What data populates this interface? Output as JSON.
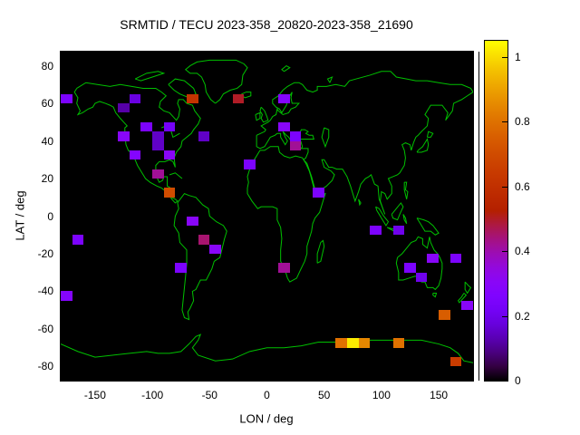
{
  "page": {
    "background": "#ffffff"
  },
  "chart_data": {
    "type": "heatmap",
    "title": "SRMTID / TECU 2023-358_20820-2023-358_21690",
    "xlabel": "LON / deg",
    "ylabel": "LAT / deg",
    "xlim": [
      -180,
      180
    ],
    "ylim": [
      -87.5,
      87.5
    ],
    "xticks": [
      -150,
      -100,
      -50,
      0,
      50,
      100,
      150
    ],
    "yticks": [
      -80,
      -60,
      -40,
      -20,
      0,
      20,
      40,
      60,
      80
    ],
    "grid": false,
    "plot_bg": "#000000",
    "coastline_color": "#00c000",
    "legend_position": "right-colorbar",
    "colorbar": {
      "min": 0,
      "max": 1.05,
      "ticks": [
        0,
        0.2,
        0.4,
        0.6,
        0.8,
        1
      ],
      "tick_labels": [
        "0",
        "0.2",
        "0.4",
        "0.6",
        "0.8",
        "1"
      ],
      "palette": "gnuplot pm3d black-violet-magenta-red-orange-yellow"
    },
    "cell_size_deg": {
      "lon": 10,
      "lat": 5
    },
    "cells": [
      {
        "lon": -180,
        "lat": 60,
        "v": 0.25
      },
      {
        "lon": -120,
        "lat": 60,
        "v": 0.18
      },
      {
        "lon": -70,
        "lat": 60,
        "v": 0.62
      },
      {
        "lon": -30,
        "lat": 60,
        "v": 0.5
      },
      {
        "lon": 10,
        "lat": 60,
        "v": 0.28
      },
      {
        "lon": -130,
        "lat": 55,
        "v": 0.12
      },
      {
        "lon": -130,
        "lat": 40,
        "v": 0.3
      },
      {
        "lon": -110,
        "lat": 45,
        "v": 0.25
      },
      {
        "lon": -100,
        "lat": 40,
        "v": 0.15
      },
      {
        "lon": -90,
        "lat": 45,
        "v": 0.22
      },
      {
        "lon": -60,
        "lat": 40,
        "v": 0.15
      },
      {
        "lon": 10,
        "lat": 45,
        "v": 0.3
      },
      {
        "lon": 20,
        "lat": 40,
        "v": 0.25
      },
      {
        "lon": 20,
        "lat": 35,
        "v": 0.42
      },
      {
        "lon": -120,
        "lat": 30,
        "v": 0.28
      },
      {
        "lon": -100,
        "lat": 35,
        "v": 0.15
      },
      {
        "lon": -90,
        "lat": 30,
        "v": 0.3
      },
      {
        "lon": -20,
        "lat": 25,
        "v": 0.25
      },
      {
        "lon": -100,
        "lat": 20,
        "v": 0.42
      },
      {
        "lon": -90,
        "lat": 10,
        "v": 0.7
      },
      {
        "lon": 40,
        "lat": 10,
        "v": 0.25
      },
      {
        "lon": -70,
        "lat": -5,
        "v": 0.3
      },
      {
        "lon": -170,
        "lat": -15,
        "v": 0.25
      },
      {
        "lon": -60,
        "lat": -15,
        "v": 0.45
      },
      {
        "lon": -50,
        "lat": -20,
        "v": 0.3
      },
      {
        "lon": 90,
        "lat": -10,
        "v": 0.25
      },
      {
        "lon": 110,
        "lat": -10,
        "v": 0.2
      },
      {
        "lon": 140,
        "lat": -25,
        "v": 0.3
      },
      {
        "lon": 160,
        "lat": -25,
        "v": 0.25
      },
      {
        "lon": -80,
        "lat": -30,
        "v": 0.25
      },
      {
        "lon": 10,
        "lat": -30,
        "v": 0.42
      },
      {
        "lon": 120,
        "lat": -30,
        "v": 0.25
      },
      {
        "lon": 130,
        "lat": -35,
        "v": 0.2
      },
      {
        "lon": -180,
        "lat": -45,
        "v": 0.28
      },
      {
        "lon": 150,
        "lat": -55,
        "v": 0.75
      },
      {
        "lon": 170,
        "lat": -50,
        "v": 0.3
      },
      {
        "lon": 60,
        "lat": -70,
        "v": 0.8
      },
      {
        "lon": 70,
        "lat": -70,
        "v": 1.02
      },
      {
        "lon": 80,
        "lat": -70,
        "v": 0.85
      },
      {
        "lon": 110,
        "lat": -70,
        "v": 0.8
      },
      {
        "lon": 160,
        "lat": -80,
        "v": 0.65
      }
    ]
  }
}
